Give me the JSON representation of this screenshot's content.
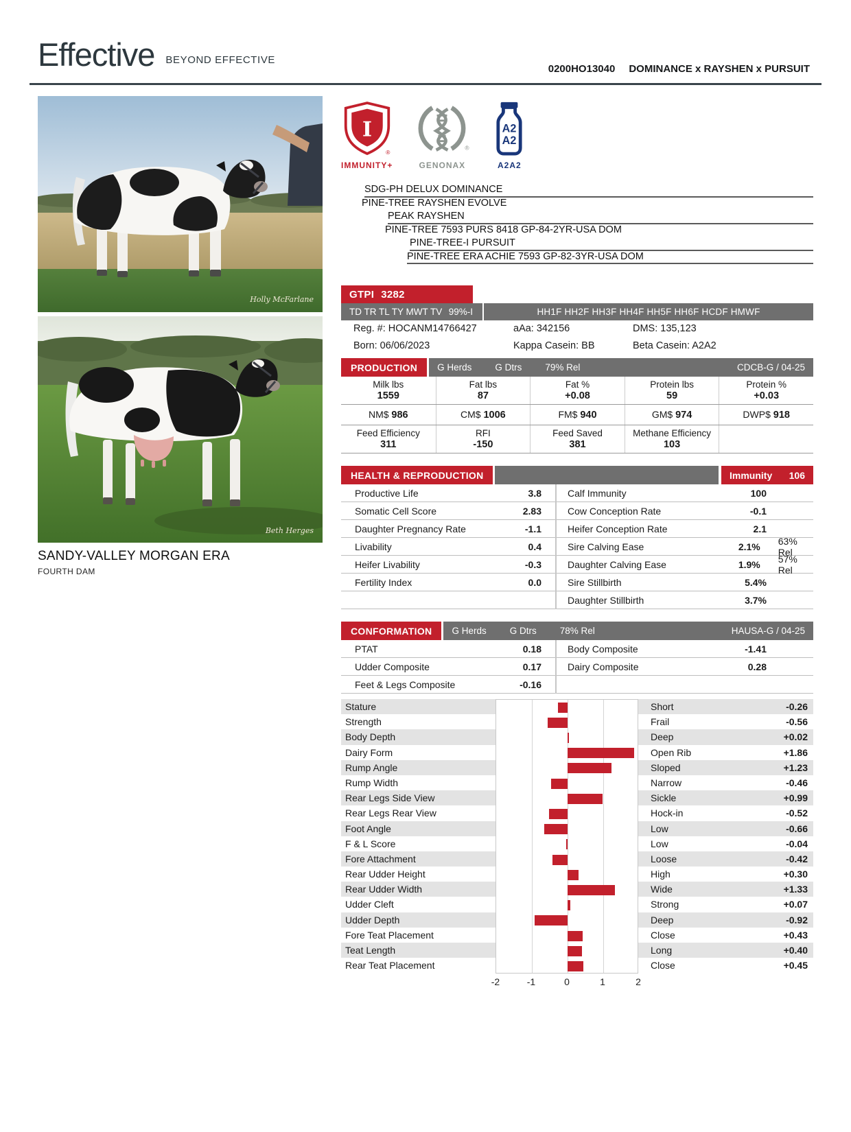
{
  "colors": {
    "accent_red": "#c2202c",
    "bar_gray": "#6f6f6f"
  },
  "header": {
    "brand": "Effective",
    "tagline": "BEYOND EFFECTIVE",
    "naab_code": "0200HO13040",
    "sire_stack": "DOMINANCE x RAYSHEN x PURSUIT"
  },
  "badges": {
    "immunity": "IMMUNITY+",
    "genonax": "GENONAX",
    "a2a2": "A2A2",
    "reg": "®",
    "bottle_line1": "A2",
    "bottle_line2": "A2"
  },
  "photos": {
    "dam_name": "SANDY-VALLEY MORGAN ERA",
    "dam_relation": "FOURTH DAM",
    "credit1": "Holly McFarlane",
    "credit2": "Beth Herges"
  },
  "pedigree": {
    "rows": [
      {
        "text": "SDG-PH DELUX DOMINANCE"
      },
      {
        "text": "PINE-TREE RAYSHEN EVOLVE"
      },
      {
        "text": "PEAK RAYSHEN"
      },
      {
        "text": "PINE-TREE 7593 PURS 8418 GP-84-2YR-USA DOM"
      },
      {
        "text": "PINE-TREE-I PURSUIT"
      },
      {
        "text": "PINE-TREE ERA ACHIE 7593 GP-82-3YR-USA DOM"
      }
    ]
  },
  "gtpi": {
    "label": "GTPI",
    "value": "3282"
  },
  "genomic": {
    "traits": "TD TR TL TY MWT TV",
    "rel": "99%-I",
    "haplotypes": "HH1F HH2F HH3F HH4F HH5F HH6F HCDF HMWF"
  },
  "identity": {
    "reg": "Reg. #: HOCANM14766427",
    "aaa": "aAa: 342156",
    "dms": "DMS: 135,123",
    "born": "Born: 06/06/2023",
    "kappa_casein": "Kappa Casein: BB",
    "beta_casein": "Beta Casein: A2A2"
  },
  "production": {
    "title": "PRODUCTION",
    "herds": "G Herds",
    "dtrs": "G Dtrs",
    "rel": "79% Rel",
    "source": "CDCB-G / 04-25",
    "row1": [
      {
        "label": "Milk lbs",
        "value": "1559"
      },
      {
        "label": "Fat lbs",
        "value": "87"
      },
      {
        "label": "Fat %",
        "value": "+0.08"
      },
      {
        "label": "Protein lbs",
        "value": "59"
      },
      {
        "label": "Protein %",
        "value": "+0.03"
      }
    ],
    "row2": [
      {
        "label": "NM$",
        "value": "986"
      },
      {
        "label": "CM$",
        "value": "1006"
      },
      {
        "label": "FM$",
        "value": "940"
      },
      {
        "label": "GM$",
        "value": "974"
      },
      {
        "label": "DWP$",
        "value": "918"
      }
    ],
    "row3": [
      {
        "label": "Feed Efficiency",
        "value": "311"
      },
      {
        "label": "RFI",
        "value": "-150"
      },
      {
        "label": "Feed Saved",
        "value": "381"
      },
      {
        "label": "Methane Efficiency",
        "value": "103"
      }
    ]
  },
  "health": {
    "title": "HEALTH & REPRODUCTION",
    "immunity_label": "Immunity",
    "immunity_value": "106",
    "left": [
      {
        "label": "Productive Life",
        "value": "3.8"
      },
      {
        "label": "Somatic Cell Score",
        "value": "2.83"
      },
      {
        "label": "Daughter Pregnancy Rate",
        "value": "-1.1"
      },
      {
        "label": "Livability",
        "value": "0.4"
      },
      {
        "label": "Heifer Livability",
        "value": "-0.3"
      },
      {
        "label": "Fertility Index",
        "value": "0.0"
      }
    ],
    "right": [
      {
        "label": "Calf Immunity",
        "value": "100",
        "rel": ""
      },
      {
        "label": "Cow Conception Rate",
        "value": "-0.1",
        "rel": ""
      },
      {
        "label": "Heifer Conception Rate",
        "value": "2.1",
        "rel": ""
      },
      {
        "label": "Sire Calving Ease",
        "value": "2.1%",
        "rel": "63% Rel"
      },
      {
        "label": "Daughter Calving Ease",
        "value": "1.9%",
        "rel": "57% Rel"
      },
      {
        "label": "Sire Stillbirth",
        "value": "5.4%",
        "rel": ""
      },
      {
        "label": "Daughter Stillbirth",
        "value": "3.7%",
        "rel": ""
      }
    ]
  },
  "conformation": {
    "title": "CONFORMATION",
    "herds": "G Herds",
    "dtrs": "G Dtrs",
    "rel": "78% Rel",
    "source": "HAUSA-G / 04-25",
    "left": [
      {
        "label": "PTAT",
        "value": "0.18"
      },
      {
        "label": "Udder Composite",
        "value": "0.17"
      },
      {
        "label": "Feet & Legs Composite",
        "value": "-0.16"
      }
    ],
    "right": [
      {
        "label": "Body Composite",
        "value": "-1.41"
      },
      {
        "label": "Dairy Composite",
        "value": "0.28"
      }
    ]
  },
  "chart_data": {
    "type": "bar",
    "orientation": "horizontal",
    "x_range": [
      -2,
      2
    ],
    "axis_labels": [
      "-2",
      "-1",
      "0",
      "1",
      "2"
    ],
    "bar_color": "#c2202c",
    "rows": [
      {
        "trait": "Stature",
        "descriptor": "Short",
        "value": -0.26,
        "display": "-0.26"
      },
      {
        "trait": "Strength",
        "descriptor": "Frail",
        "value": -0.56,
        "display": "-0.56"
      },
      {
        "trait": "Body Depth",
        "descriptor": "Deep",
        "value": 0.02,
        "display": "+0.02"
      },
      {
        "trait": "Dairy Form",
        "descriptor": "Open Rib",
        "value": 1.86,
        "display": "+1.86"
      },
      {
        "trait": "Rump Angle",
        "descriptor": "Sloped",
        "value": 1.23,
        "display": "+1.23"
      },
      {
        "trait": "Rump Width",
        "descriptor": "Narrow",
        "value": -0.46,
        "display": "-0.46"
      },
      {
        "trait": "Rear Legs Side View",
        "descriptor": "Sickle",
        "value": 0.99,
        "display": "+0.99"
      },
      {
        "trait": "Rear Legs Rear View",
        "descriptor": "Hock-in",
        "value": -0.52,
        "display": "-0.52"
      },
      {
        "trait": "Foot Angle",
        "descriptor": "Low",
        "value": -0.66,
        "display": "-0.66"
      },
      {
        "trait": "F & L Score",
        "descriptor": "Low",
        "value": -0.04,
        "display": "-0.04"
      },
      {
        "trait": "Fore Attachment",
        "descriptor": "Loose",
        "value": -0.42,
        "display": "-0.42"
      },
      {
        "trait": "Rear Udder Height",
        "descriptor": "High",
        "value": 0.3,
        "display": "+0.30"
      },
      {
        "trait": "Rear Udder Width",
        "descriptor": "Wide",
        "value": 1.33,
        "display": "+1.33"
      },
      {
        "trait": "Udder Cleft",
        "descriptor": "Strong",
        "value": 0.07,
        "display": "+0.07"
      },
      {
        "trait": "Udder Depth",
        "descriptor": "Deep",
        "value": -0.92,
        "display": "-0.92"
      },
      {
        "trait": "Fore Teat Placement",
        "descriptor": "Close",
        "value": 0.43,
        "display": "+0.43"
      },
      {
        "trait": "Teat Length",
        "descriptor": "Long",
        "value": 0.4,
        "display": "+0.40"
      },
      {
        "trait": "Rear Teat Placement",
        "descriptor": "Close",
        "value": 0.45,
        "display": "+0.45"
      }
    ]
  }
}
